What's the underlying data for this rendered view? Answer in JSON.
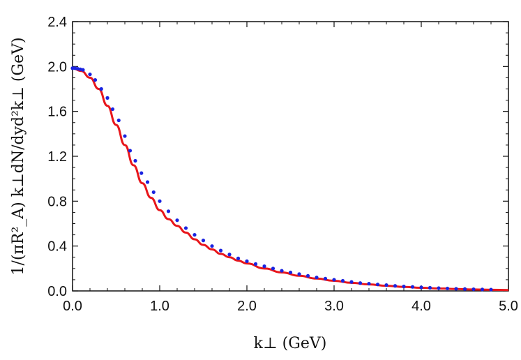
{
  "chart_data": {
    "type": "line",
    "title": "",
    "xlabel": "k⊥ (GeV)",
    "ylabel": "1/(πR²_A)  k⊥dN/dyd²k⊥ (GeV)",
    "xlim": [
      0,
      5
    ],
    "ylim": [
      0,
      2.4
    ],
    "xticks": [
      0,
      1,
      2,
      3,
      4,
      5
    ],
    "xtick_labels": [
      "0.0",
      "1.0",
      "2.0",
      "3.0",
      "4.0",
      "5.0"
    ],
    "yticks": [
      0,
      0.4,
      0.8,
      1.2,
      1.6,
      2.0,
      2.4
    ],
    "ytick_labels": [
      "0.0",
      "0.4",
      "0.8",
      "1.2",
      "1.6",
      "2.0",
      "2.4"
    ],
    "grid": false,
    "legend": "none",
    "series": [
      {
        "style": "line",
        "color": "#e8161b",
        "x": [
          0,
          0.1,
          0.2,
          0.3,
          0.4,
          0.5,
          0.6,
          0.7,
          0.8,
          0.9,
          1.0,
          1.1,
          1.2,
          1.3,
          1.4,
          1.5,
          1.6,
          1.7,
          1.8,
          1.9,
          2.0,
          2.2,
          2.4,
          2.6,
          2.8,
          3.0,
          3.2,
          3.4,
          3.6,
          3.8,
          4.0,
          4.2,
          4.4,
          4.6,
          4.8,
          5.0
        ],
        "y": [
          1.985,
          1.96,
          1.9,
          1.8,
          1.65,
          1.48,
          1.3,
          1.12,
          0.96,
          0.83,
          0.72,
          0.64,
          0.58,
          0.52,
          0.46,
          0.41,
          0.37,
          0.33,
          0.3,
          0.27,
          0.245,
          0.2,
          0.165,
          0.135,
          0.11,
          0.09,
          0.072,
          0.058,
          0.046,
          0.036,
          0.028,
          0.022,
          0.017,
          0.013,
          0.01,
          0.008
        ]
      },
      {
        "style": "points",
        "color": "#1a23e0",
        "x": [
          0,
          0.03,
          0.06,
          0.09,
          0.12,
          0.2,
          0.26,
          0.33,
          0.4,
          0.46,
          0.53,
          0.6,
          0.66,
          0.72,
          0.79,
          0.86,
          0.93,
          1.0,
          1.1,
          1.2,
          1.3,
          1.4,
          1.5,
          1.6,
          1.7,
          1.8,
          1.9,
          2.0,
          2.1,
          2.2,
          2.3,
          2.4,
          2.5,
          2.6,
          2.7,
          2.8,
          2.9,
          3.0,
          3.1,
          3.2,
          3.3,
          3.4,
          3.5,
          3.6,
          3.7,
          3.8,
          3.9,
          4.0,
          4.1,
          4.2,
          4.3,
          4.4,
          4.5,
          4.6,
          4.7,
          4.8
        ],
        "y": [
          1.985,
          1.985,
          1.98,
          1.975,
          1.97,
          1.93,
          1.88,
          1.8,
          1.72,
          1.62,
          1.52,
          1.38,
          1.25,
          1.16,
          1.05,
          0.97,
          0.88,
          0.8,
          0.71,
          0.63,
          0.56,
          0.5,
          0.45,
          0.4,
          0.36,
          0.325,
          0.29,
          0.265,
          0.24,
          0.22,
          0.2,
          0.18,
          0.165,
          0.15,
          0.135,
          0.12,
          0.11,
          0.1,
          0.09,
          0.08,
          0.07,
          0.065,
          0.058,
          0.052,
          0.045,
          0.04,
          0.036,
          0.032,
          0.028,
          0.025,
          0.022,
          0.019,
          0.017,
          0.015,
          0.013,
          0.012
        ]
      }
    ]
  }
}
